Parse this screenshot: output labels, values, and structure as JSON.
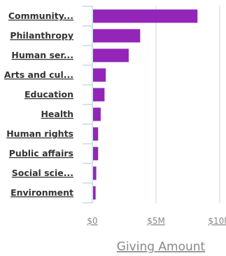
{
  "chart_data": {
    "type": "bar",
    "orientation": "horizontal",
    "categories": [
      "Community...",
      "Philanthropy",
      "Human ser...",
      "Arts and cul...",
      "Education",
      "Health",
      "Human rights",
      "Public affairs",
      "Social scie...",
      "Environment"
    ],
    "values": [
      8.2,
      3.7,
      2.8,
      1.0,
      0.9,
      0.6,
      0.4,
      0.4,
      0.25,
      0.2
    ],
    "xlabel": "Giving Amount",
    "ylabel": "",
    "xlim": [
      0,
      11
    ],
    "x_ticks": [
      {
        "value": 0,
        "label": "$0"
      },
      {
        "value": 5,
        "label": "$5M"
      },
      {
        "value": 10,
        "label": "$10M"
      }
    ],
    "grid": true,
    "colors": {
      "bar": "#9325B8",
      "grid": "#C9D8E6",
      "axis": "#C9D8E6"
    }
  }
}
